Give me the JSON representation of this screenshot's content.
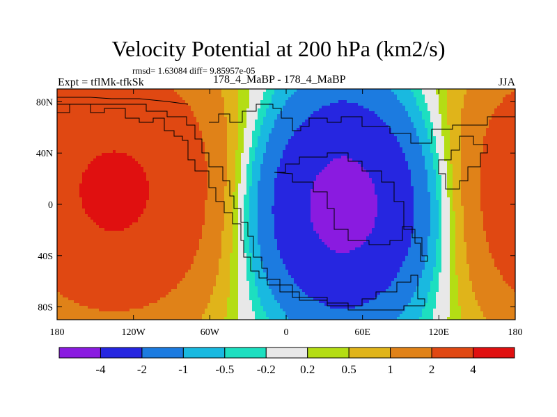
{
  "chart_data": {
    "type": "heatmap",
    "title": "Velocity Potential at 200 hPa (km2/s)",
    "stats": "rmsd= 1.63084 diff= 9.85957e-05",
    "experiment": "Expt = tflMk-tfkSk",
    "cases": "178_4_MaBP - 178_4_MaBP",
    "season": "JJA",
    "x_ticks": [
      {
        "value": -180,
        "label": "180"
      },
      {
        "value": -120,
        "label": "120W"
      },
      {
        "value": -60,
        "label": "60W"
      },
      {
        "value": 0,
        "label": "0"
      },
      {
        "value": 60,
        "label": "60E"
      },
      {
        "value": 120,
        "label": "120E"
      },
      {
        "value": 180,
        "label": "180"
      }
    ],
    "y_ticks": [
      {
        "value": 80,
        "label": "80N"
      },
      {
        "value": 40,
        "label": "40N"
      },
      {
        "value": 0,
        "label": "0"
      },
      {
        "value": -40,
        "label": "40S"
      },
      {
        "value": -80,
        "label": "80S"
      }
    ],
    "xlim": [
      -180,
      180
    ],
    "ylim": [
      -90,
      90
    ],
    "colorbar": {
      "colors": [
        "#8a1be0",
        "#2626e0",
        "#1c7be0",
        "#19b9e0",
        "#1ddfc0",
        "#e8e8e8",
        "#b4dd14",
        "#e0b41a",
        "#e08218",
        "#e04812",
        "#e01010"
      ],
      "labels": [
        "-4",
        "-2",
        "-1",
        "-0.5",
        "-0.2",
        "0.2",
        "0.5",
        "1",
        "2",
        "4"
      ]
    },
    "field": {
      "type": "sum of gaussian centres, value in km2/s",
      "centers": [
        {
          "name": "negative-center-east",
          "lon": 45,
          "lat": 0,
          "amp": -5.2,
          "sx": 58,
          "sy": 62
        },
        {
          "name": "positive-center-west",
          "lon": -135,
          "lat": 10,
          "amp": 4.4,
          "sx": 80,
          "sy": 75
        }
      ]
    }
  }
}
